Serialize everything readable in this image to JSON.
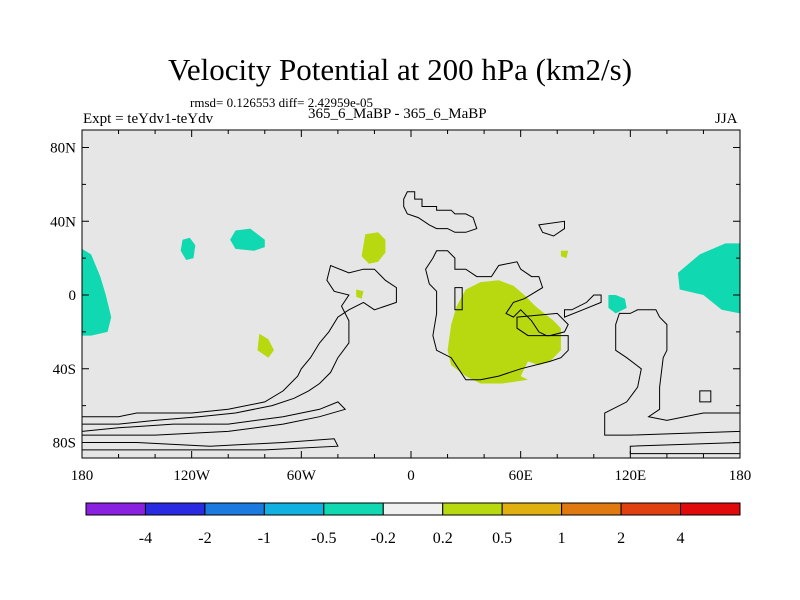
{
  "header": {
    "title": "Velocity Potential at 200 hPa (km2/s)",
    "stats": "rmsd= 0.126553 diff= 2.42959e-05",
    "experiment": "Expt = teYdv1-teYdv",
    "case": "365_6_MaBP - 365_6_MaBP",
    "season": "JJA"
  },
  "chart_data": {
    "type": "contour map",
    "title": "Velocity Potential at 200 hPa (km2/s)",
    "units": "km2/s",
    "background_color": "#e6e6e6",
    "xlim": [
      -180,
      180
    ],
    "ylim": [
      -90,
      90
    ],
    "x_ticks": [
      {
        "value": -180,
        "label": "180"
      },
      {
        "value": -120,
        "label": "120W"
      },
      {
        "value": -60,
        "label": "60W"
      },
      {
        "value": 0,
        "label": "0"
      },
      {
        "value": 60,
        "label": "60E"
      },
      {
        "value": 120,
        "label": "120E"
      },
      {
        "value": 180,
        "label": "180"
      }
    ],
    "y_ticks": [
      {
        "value": 80,
        "label": "80N"
      },
      {
        "value": 40,
        "label": "40N"
      },
      {
        "value": 0,
        "label": "0"
      },
      {
        "value": -40,
        "label": "40S"
      },
      {
        "value": -80,
        "label": "80S"
      }
    ],
    "colorbar": {
      "colors": [
        "#8a20e0",
        "#2a2ae0",
        "#1a7ae0",
        "#10b0e0",
        "#10d8b0",
        "#f0f0f0",
        "#b8d810",
        "#e0b010",
        "#e07a10",
        "#e04010",
        "#e00a0a"
      ],
      "labels": [
        "-4",
        "-2",
        "-1",
        "-0.5",
        "-0.2",
        "0.2",
        "0.5",
        "1",
        "2",
        "4"
      ]
    },
    "regions": [
      {
        "name": "neg-pacific-west",
        "level": "-0.5 to -0.2",
        "color": "#10d8b0",
        "points": [
          [
            -180,
            25
          ],
          [
            -175,
            22
          ],
          [
            -170,
            10
          ],
          [
            -167,
            0
          ],
          [
            -164,
            -12
          ],
          [
            -166,
            -20
          ],
          [
            -175,
            -22
          ],
          [
            -180,
            -22
          ]
        ]
      },
      {
        "name": "neg-pacific-east",
        "level": "-0.5 to -0.2",
        "color": "#10d8b0",
        "points": [
          [
            180,
            28
          ],
          [
            172,
            28
          ],
          [
            158,
            22
          ],
          [
            146,
            12
          ],
          [
            147,
            3
          ],
          [
            160,
            0
          ],
          [
            170,
            -8
          ],
          [
            180,
            -10
          ]
        ]
      },
      {
        "name": "neg-north-atlantic",
        "level": "-0.5 to -0.2",
        "color": "#10d8b0",
        "points": [
          [
            -96,
            35
          ],
          [
            -88,
            36
          ],
          [
            -80,
            30
          ],
          [
            -80,
            26
          ],
          [
            -86,
            24
          ],
          [
            -96,
            25
          ],
          [
            -99,
            30
          ]
        ]
      },
      {
        "name": "neg-north-pacific-small",
        "level": "-0.5 to -0.2",
        "color": "#10d8b0",
        "points": [
          [
            -125,
            30
          ],
          [
            -121,
            31
          ],
          [
            -118,
            27
          ],
          [
            -119,
            20
          ],
          [
            -123,
            19
          ],
          [
            -126,
            24
          ]
        ]
      },
      {
        "name": "neg-maritime",
        "level": "-0.5 to -0.2",
        "color": "#10d8b0",
        "points": [
          [
            108,
            0
          ],
          [
            112,
            0
          ],
          [
            117,
            -2
          ],
          [
            118,
            -7
          ],
          [
            112,
            -10
          ],
          [
            108,
            -7
          ]
        ]
      },
      {
        "name": "pos-north-africa",
        "level": "0.2 to 0.5",
        "color": "#b8d810",
        "points": [
          [
            -25,
            33
          ],
          [
            -18,
            34
          ],
          [
            -14,
            30
          ],
          [
            -14,
            23
          ],
          [
            -18,
            18
          ],
          [
            -23,
            17
          ],
          [
            -27,
            21
          ]
        ]
      },
      {
        "name": "pos-south-atlantic",
        "level": "0.2 to 0.5",
        "color": "#b8d810",
        "points": [
          [
            -83,
            -21
          ],
          [
            -78,
            -24
          ],
          [
            -75,
            -30
          ],
          [
            -78,
            -34
          ],
          [
            -84,
            -30
          ]
        ]
      },
      {
        "name": "pos-west-africa-small",
        "level": "0.2 to 0.5",
        "color": "#b8d810",
        "points": [
          [
            -30,
            3
          ],
          [
            -26,
            2
          ],
          [
            -27,
            -2
          ],
          [
            -30,
            -1
          ]
        ]
      },
      {
        "name": "pos-arabia-dot",
        "level": "0.2 to 0.5",
        "color": "#b8d810",
        "points": [
          [
            82,
            24
          ],
          [
            86,
            24
          ],
          [
            85,
            20
          ],
          [
            82,
            21
          ]
        ]
      },
      {
        "name": "pos-indian-ocean",
        "level": "0.2 to 0.5",
        "color": "#b8d810",
        "points": [
          [
            30,
            3
          ],
          [
            38,
            7
          ],
          [
            48,
            8
          ],
          [
            56,
            5
          ],
          [
            62,
            0
          ],
          [
            68,
            -6
          ],
          [
            78,
            -14
          ],
          [
            82,
            -18
          ],
          [
            82,
            -30
          ],
          [
            76,
            -36
          ],
          [
            70,
            -38
          ],
          [
            64,
            -36
          ],
          [
            60,
            -44
          ],
          [
            64,
            -46
          ],
          [
            50,
            -48
          ],
          [
            38,
            -48
          ],
          [
            30,
            -44
          ],
          [
            22,
            -38
          ],
          [
            20,
            -30
          ],
          [
            22,
            -16
          ],
          [
            25,
            -6
          ]
        ]
      }
    ],
    "outlines": [
      {
        "name": "north-america",
        "points": [
          [
            -180,
            -66
          ],
          [
            -160,
            -66
          ],
          [
            -150,
            -64
          ],
          [
            -120,
            -64
          ],
          [
            -100,
            -62
          ],
          [
            -80,
            -58
          ],
          [
            -70,
            -52
          ],
          [
            -62,
            -44
          ],
          [
            -60,
            -40
          ],
          [
            -55,
            -34
          ],
          [
            -50,
            -26
          ],
          [
            -45,
            -20
          ],
          [
            -40,
            -12
          ],
          [
            -34,
            -8
          ],
          [
            -26,
            -4
          ],
          [
            -20,
            -8
          ],
          [
            -14,
            -6
          ],
          [
            -8,
            -4
          ],
          [
            -8,
            4
          ],
          [
            -14,
            8
          ],
          [
            -20,
            14
          ],
          [
            -26,
            14
          ],
          [
            -34,
            12
          ],
          [
            -44,
            16
          ],
          [
            -46,
            8
          ],
          [
            -42,
            2
          ],
          [
            -34,
            0
          ],
          [
            -38,
            -6
          ],
          [
            -34,
            -14
          ],
          [
            -34,
            -26
          ],
          [
            -40,
            -34
          ],
          [
            -44,
            -42
          ],
          [
            -50,
            -48
          ],
          [
            -56,
            -52
          ],
          [
            -64,
            -56
          ],
          [
            -76,
            -60
          ],
          [
            -96,
            -64
          ],
          [
            -116,
            -66
          ],
          [
            -140,
            -68
          ],
          [
            -160,
            -70
          ],
          [
            -180,
            -70
          ]
        ]
      },
      {
        "name": "andes-strip",
        "points": [
          [
            -180,
            -74
          ],
          [
            -160,
            -72
          ],
          [
            -130,
            -70
          ],
          [
            -100,
            -70
          ],
          [
            -70,
            -66
          ],
          [
            -50,
            -62
          ],
          [
            -40,
            -58
          ],
          [
            -36,
            -62
          ],
          [
            -50,
            -66
          ],
          [
            -70,
            -70
          ],
          [
            -100,
            -74
          ],
          [
            -140,
            -76
          ],
          [
            -180,
            -76
          ]
        ]
      },
      {
        "name": "south-strip",
        "points": [
          [
            -180,
            -80
          ],
          [
            -150,
            -80
          ],
          [
            -110,
            -82
          ],
          [
            -70,
            -80
          ],
          [
            -42,
            -78
          ],
          [
            -40,
            -82
          ],
          [
            -80,
            -84
          ],
          [
            -140,
            -84
          ],
          [
            -180,
            -84
          ]
        ]
      },
      {
        "name": "europe-north",
        "points": [
          [
            -2,
            56
          ],
          [
            2,
            56
          ],
          [
            2,
            52
          ],
          [
            6,
            52
          ],
          [
            6,
            48
          ],
          [
            14,
            48
          ],
          [
            14,
            46
          ],
          [
            22,
            46
          ],
          [
            24,
            44
          ],
          [
            30,
            44
          ],
          [
            34,
            42
          ],
          [
            36,
            36
          ],
          [
            30,
            34
          ],
          [
            24,
            34
          ],
          [
            20,
            36
          ],
          [
            14,
            36
          ],
          [
            10,
            38
          ],
          [
            4,
            42
          ],
          [
            -2,
            44
          ],
          [
            -4,
            48
          ],
          [
            -4,
            52
          ]
        ]
      },
      {
        "name": "asia-block",
        "points": [
          [
            14,
            24
          ],
          [
            20,
            24
          ],
          [
            24,
            20
          ],
          [
            24,
            14
          ],
          [
            30,
            14
          ],
          [
            36,
            10
          ],
          [
            44,
            10
          ],
          [
            48,
            16
          ],
          [
            58,
            18
          ],
          [
            60,
            14
          ],
          [
            66,
            10
          ],
          [
            70,
            10
          ],
          [
            72,
            4
          ],
          [
            62,
            -2
          ],
          [
            56,
            -4
          ],
          [
            52,
            -10
          ],
          [
            56,
            -12
          ],
          [
            60,
            -8
          ],
          [
            66,
            -14
          ],
          [
            70,
            -20
          ],
          [
            74,
            -22
          ],
          [
            86,
            -22
          ],
          [
            86,
            -30
          ],
          [
            82,
            -34
          ],
          [
            76,
            -36
          ],
          [
            60,
            -40
          ],
          [
            48,
            -44
          ],
          [
            38,
            -46
          ],
          [
            30,
            -46
          ],
          [
            26,
            -40
          ],
          [
            22,
            -34
          ],
          [
            14,
            -30
          ],
          [
            12,
            -22
          ],
          [
            14,
            -10
          ],
          [
            14,
            2
          ],
          [
            10,
            6
          ],
          [
            8,
            14
          ],
          [
            12,
            20
          ]
        ]
      },
      {
        "name": "middle-box",
        "points": [
          [
            24,
            4
          ],
          [
            28,
            4
          ],
          [
            28,
            -8
          ],
          [
            24,
            -8
          ]
        ]
      },
      {
        "name": "eastasia-inlet",
        "points": [
          [
            58,
            -12
          ],
          [
            80,
            -10
          ],
          [
            86,
            -16
          ],
          [
            84,
            -20
          ],
          [
            76,
            -22
          ],
          [
            64,
            -22
          ],
          [
            58,
            -18
          ]
        ]
      },
      {
        "name": "australia-strip",
        "points": [
          [
            84,
            -12
          ],
          [
            94,
            -8
          ],
          [
            104,
            -4
          ],
          [
            104,
            0
          ],
          [
            100,
            0
          ],
          [
            96,
            -4
          ],
          [
            88,
            -8
          ],
          [
            84,
            -8
          ]
        ]
      },
      {
        "name": "australia-block",
        "points": [
          [
            114,
            -10
          ],
          [
            120,
            -10
          ],
          [
            124,
            -8
          ],
          [
            134,
            -8
          ],
          [
            136,
            -12
          ],
          [
            140,
            -16
          ],
          [
            140,
            -30
          ],
          [
            138,
            -34
          ],
          [
            136,
            -50
          ],
          [
            136,
            -62
          ],
          [
            130,
            -66
          ],
          [
            140,
            -68
          ],
          [
            160,
            -64
          ],
          [
            180,
            -64
          ],
          [
            180,
            -74
          ],
          [
            120,
            -76
          ],
          [
            106,
            -76
          ],
          [
            106,
            -64
          ],
          [
            118,
            -58
          ],
          [
            124,
            -50
          ],
          [
            126,
            -40
          ],
          [
            118,
            -34
          ],
          [
            112,
            -30
          ],
          [
            112,
            -16
          ]
        ]
      },
      {
        "name": "new-zealand",
        "points": [
          [
            158,
            -52
          ],
          [
            164,
            -52
          ],
          [
            164,
            -58
          ],
          [
            158,
            -58
          ]
        ]
      },
      {
        "name": "antarctic-edge",
        "points": [
          [
            120,
            -82
          ],
          [
            180,
            -80
          ],
          [
            180,
            -86
          ],
          [
            120,
            -86
          ]
        ]
      },
      {
        "name": "japan",
        "points": [
          [
            70,
            38
          ],
          [
            84,
            40
          ],
          [
            84,
            36
          ],
          [
            78,
            32
          ],
          [
            72,
            34
          ]
        ]
      }
    ]
  }
}
